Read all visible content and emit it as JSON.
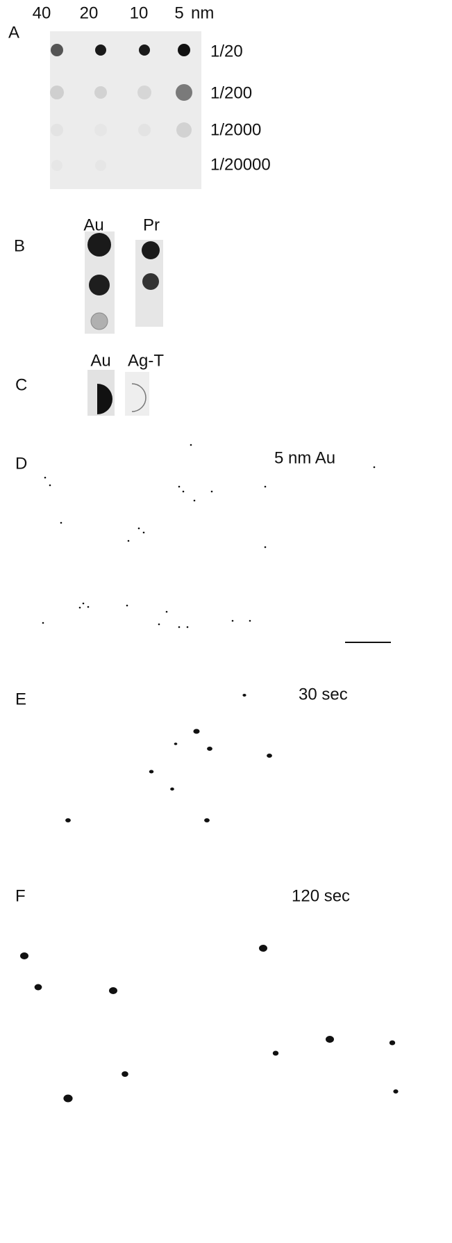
{
  "panels": [
    {
      "label": "A",
      "columns": [
        "40",
        "20",
        "10",
        "5"
      ],
      "unit": "nm",
      "rows": [
        "1/20",
        "1/200",
        "1/2000",
        "1/20000"
      ]
    },
    {
      "label": "B",
      "strips": [
        "Au",
        "Pr"
      ]
    },
    {
      "label": "C",
      "strips": [
        "Au",
        "Ag-T"
      ]
    },
    {
      "label": "D",
      "caption": "5 nm Au"
    },
    {
      "label": "E",
      "caption": "30 sec"
    },
    {
      "label": "F",
      "caption": "120 sec"
    }
  ]
}
